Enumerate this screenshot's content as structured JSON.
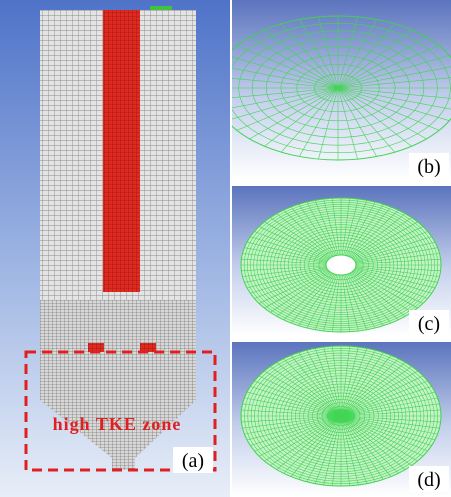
{
  "panels": [
    {
      "label": "(a)"
    },
    {
      "label": "(b)"
    },
    {
      "label": "(c)"
    },
    {
      "label": "(d)"
    }
  ],
  "annotation": "high TKE zone"
}
